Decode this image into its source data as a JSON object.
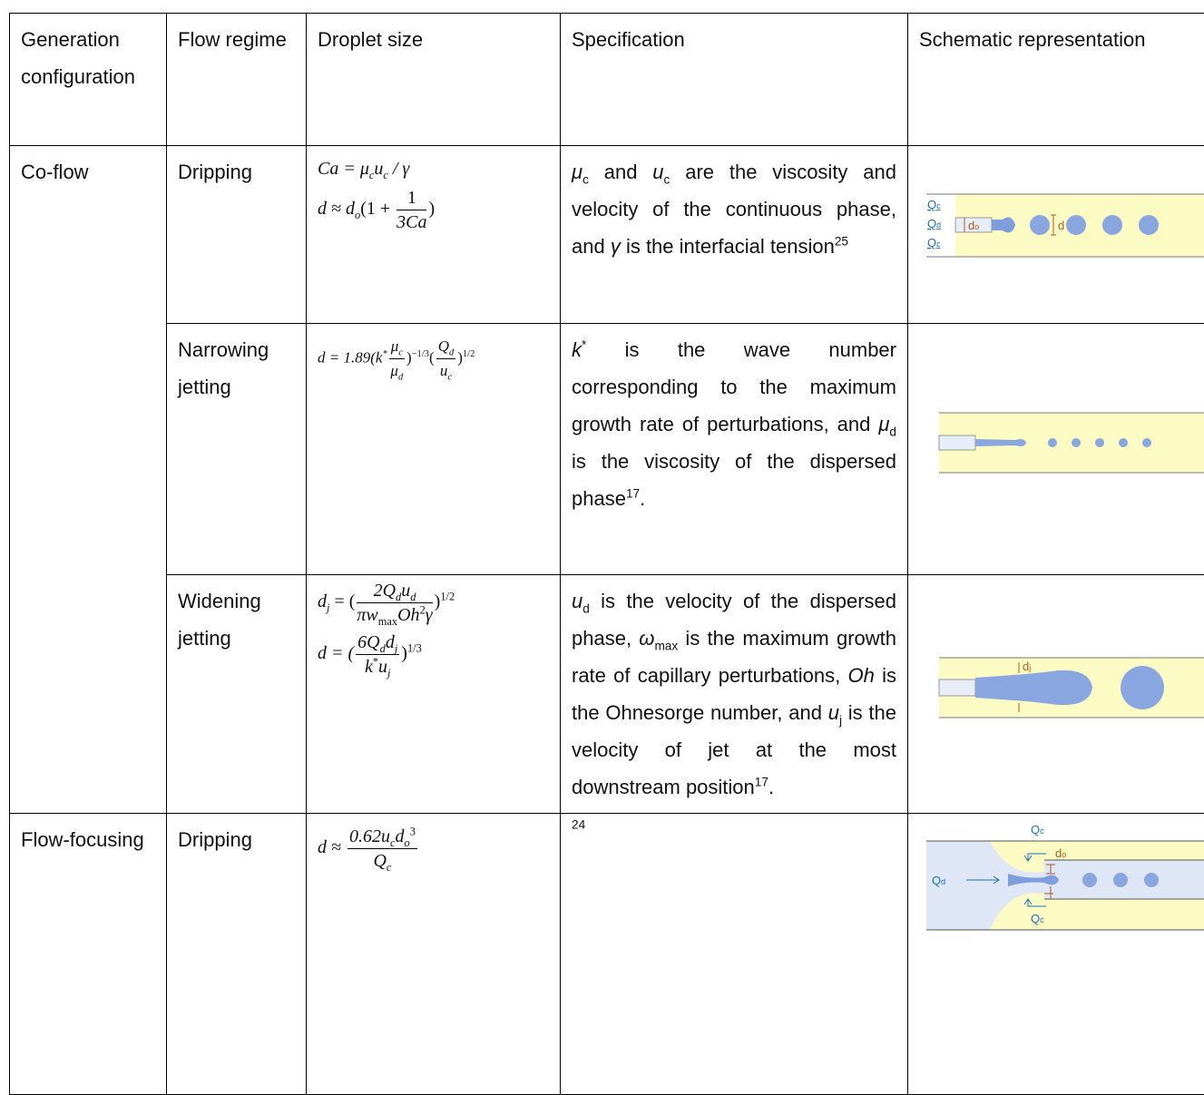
{
  "header": [
    "Generation configuration",
    "Flow regime",
    "Droplet size",
    "Specification",
    "Schematic representation"
  ],
  "rows": [
    {
      "configuration": "Co-flow",
      "regime": "Dripping",
      "formula": [
        "Ca = μ",
        "c",
        "u",
        "c",
        " / γ",
        "d ≈ d",
        "o",
        "(1 + ",
        "1",
        "3Ca",
        ")"
      ],
      "specification": [
        "μ",
        "c",
        " and ",
        "u",
        "c",
        " are the viscosity and velocity of the continuous phase, and ",
        "γ",
        " is the interfacial tension",
        "25"
      ],
      "schematic": [
        "Q",
        "c",
        "Q",
        "d",
        "Q",
        "c",
        "d",
        "o",
        "d"
      ]
    },
    {
      "regime": "Narrowing jetting",
      "formula": [
        "d = 1.89(k",
        "*",
        "μ",
        "c",
        "μ",
        "d",
        ")",
        "−1/3",
        "(",
        "Q",
        "d",
        "u",
        "c",
        ")",
        "1/2"
      ],
      "specification": [
        "k",
        "*",
        " is the wave number corresponding to the maximum growth rate of perturbations, and ",
        "μ",
        "d",
        " is the viscosity of the dispersed phase",
        "17",
        "."
      ]
    },
    {
      "regime": "Widening jetting",
      "formula": [
        "d",
        "j",
        " = (",
        "2Q",
        "d",
        "u",
        "d",
        "πw",
        "max",
        "Oh",
        "2",
        "γ",
        ")",
        "1/2",
        "d = (",
        "6Q",
        "d",
        "d",
        "j",
        "k",
        "*",
        "u",
        "j",
        ")",
        "1/3"
      ],
      "specification": [
        "u",
        "d",
        " is the velocity of the dispersed phase, ",
        "ω",
        "max",
        " is the maximum growth rate of capillary perturbations, ",
        "Oh",
        " is the Ohnesorge number, and ",
        "u",
        "j",
        " is the velocity of jet at the most downstream position",
        "17",
        "."
      ],
      "schematic": [
        "d",
        "j"
      ]
    },
    {
      "configuration": "Flow-focusing",
      "regime": "Dripping",
      "formula": [
        "d ≈ ",
        "0.62u",
        "c",
        "d",
        "o",
        "3",
        "Q",
        "c"
      ],
      "specification": [
        "24"
      ],
      "schematic": [
        "Q",
        "c",
        "Q",
        "d",
        "d",
        "o",
        "Q",
        "c"
      ]
    }
  ]
}
